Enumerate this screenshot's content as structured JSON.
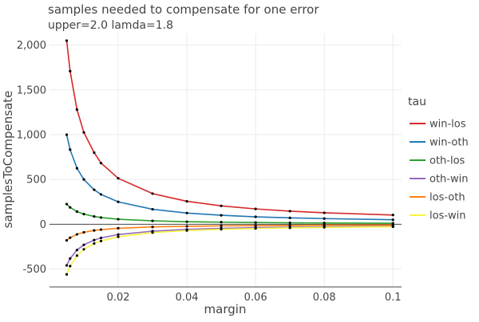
{
  "chart_data": {
    "type": "line",
    "title": "samples needed to compensate for one error",
    "subtitle": "upper=2.0 lamda=1.8",
    "xlabel": "margin",
    "ylabel": "samplesToCompensate",
    "xlim": [
      0.0,
      0.1025
    ],
    "ylim": [
      -700,
      2130
    ],
    "xticks": [
      0.02,
      0.04,
      0.06,
      0.08,
      0.1
    ],
    "xtick_labels": [
      "0.02",
      "0.04",
      "0.06",
      "0.08",
      "0.1"
    ],
    "yticks": [
      -500,
      0,
      500,
      1000,
      1500,
      2000
    ],
    "ytick_labels": [
      "-500",
      "0",
      "500",
      "1,000",
      "1,500",
      "2,000"
    ],
    "grid": true,
    "legend_title": "tau",
    "legend_position": "right",
    "x": [
      0.005,
      0.006,
      0.008,
      0.01,
      0.013,
      0.015,
      0.02,
      0.03,
      0.04,
      0.05,
      0.06,
      0.07,
      0.08,
      0.1
    ],
    "series": [
      {
        "name": "win-los",
        "color": "#d62728",
        "values": [
          2050,
          1710,
          1280,
          1025,
          800,
          683,
          513,
          342,
          256,
          205,
          171,
          146,
          128,
          103
        ]
      },
      {
        "name": "win-oth",
        "color": "#1f77b4",
        "values": [
          1000,
          833,
          625,
          500,
          385,
          333,
          250,
          167,
          125,
          100,
          83,
          71,
          63,
          50
        ]
      },
      {
        "name": "oth-los",
        "color": "#2ca02c",
        "values": [
          225,
          188,
          141,
          113,
          87,
          75,
          56,
          38,
          28,
          23,
          19,
          16,
          14,
          11
        ]
      },
      {
        "name": "oth-win",
        "color": "#9467bd",
        "values": [
          -460,
          -383,
          -288,
          -230,
          -177,
          -153,
          -115,
          -77,
          -58,
          -46,
          -38,
          -33,
          -29,
          -23
        ]
      },
      {
        "name": "los-oth",
        "color": "#ff7f0e",
        "values": [
          -180,
          -150,
          -113,
          -90,
          -69,
          -60,
          -45,
          -30,
          -23,
          -18,
          -15,
          -13,
          -11,
          -9
        ]
      },
      {
        "name": "los-win",
        "color": "#f5f53c",
        "values": [
          -560,
          -467,
          -350,
          -280,
          -215,
          -187,
          -140,
          -93,
          -70,
          -56,
          -47,
          -40,
          -35,
          -28
        ]
      }
    ]
  }
}
